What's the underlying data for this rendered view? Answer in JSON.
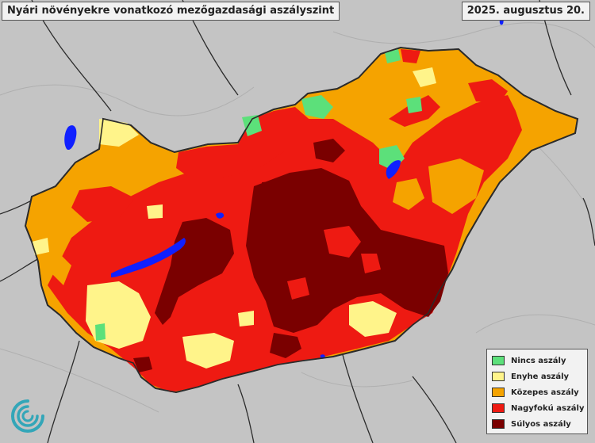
{
  "header": {
    "title": "Nyári növényekre vonatkozó mezőgazdasági aszályszint",
    "date": "2025. augusztus 20."
  },
  "legend": {
    "items": [
      {
        "label": "Nincs aszály",
        "color": "#5ce07a"
      },
      {
        "label": "Enyhe aszály",
        "color": "#fff48a"
      },
      {
        "label": "Közepes aszály",
        "color": "#f5a300"
      },
      {
        "label": "Nagyfokú aszály",
        "color": "#ee1a12"
      },
      {
        "label": "Súlyos aszály",
        "color": "#7a0000"
      }
    ]
  },
  "map": {
    "background_color": "#c4c4c4",
    "border_color": "#2b2b2b",
    "water_color": "#1020ff",
    "logo_icon": "spiral-logo-icon",
    "logo_color": "#33a6b8"
  }
}
